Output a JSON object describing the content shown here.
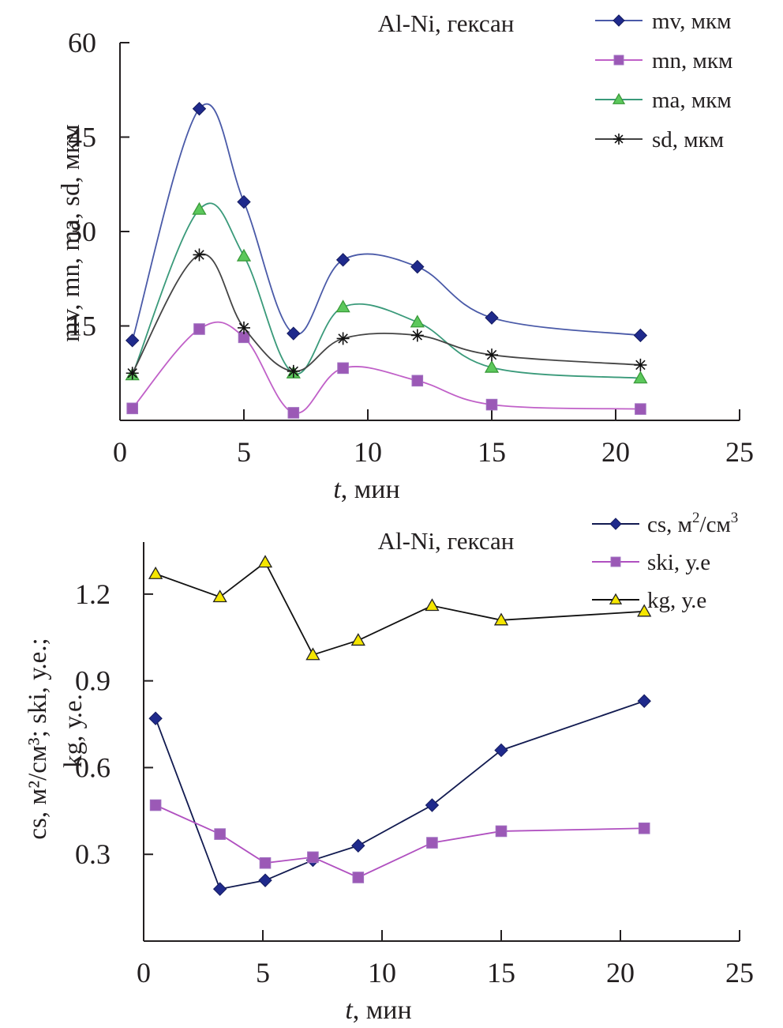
{
  "chart_data": [
    {
      "type": "line",
      "title": "Al-Ni, гексан",
      "xlabel_italic": "t",
      "xlabel_rest": ", мин",
      "ylabel": "mv, mn, ma, sd, мкм",
      "xlim": [
        0,
        25
      ],
      "ylim": [
        0,
        60
      ],
      "xticks": [
        0,
        5,
        10,
        15,
        20,
        25
      ],
      "yticks": [
        0,
        15,
        30,
        45,
        60
      ],
      "xtick_labels": [
        "0",
        "5",
        "10",
        "15",
        "20",
        "25"
      ],
      "ytick_labels": [
        "0",
        "15",
        "30",
        "45",
        "60"
      ],
      "grid": false,
      "smooth": true,
      "legend_position": "top-right",
      "x": [
        0.5,
        3.2,
        5.0,
        7.0,
        9.0,
        12.0,
        15.0,
        21.0
      ],
      "series": [
        {
          "name": "mv, мкм",
          "marker": "diamond",
          "color": "#1f2a8c",
          "line_color": "#4a5aa8",
          "values": [
            12.7,
            49.5,
            34.7,
            13.8,
            25.5,
            24.4,
            16.3,
            13.5
          ]
        },
        {
          "name": "mn, мкм",
          "marker": "square",
          "color": "#9b59b6",
          "line_color": "#c060c8",
          "values": [
            1.9,
            14.5,
            13.2,
            1.2,
            8.3,
            6.3,
            2.5,
            1.8
          ]
        },
        {
          "name": "ma, мкм",
          "marker": "triangle",
          "color": "#5cc85c",
          "line_color": "#3a9a7a",
          "values": [
            7.2,
            33.5,
            26.1,
            7.5,
            18.0,
            15.6,
            8.4,
            6.7
          ]
        },
        {
          "name": "sd, мкм",
          "marker": "asterisk",
          "color": "#111111",
          "line_color": "#444444",
          "values": [
            7.5,
            26.3,
            14.7,
            7.8,
            13.0,
            13.5,
            10.4,
            8.8
          ]
        }
      ]
    },
    {
      "type": "line",
      "title": "Al-Ni, гексан",
      "xlabel_italic": "t",
      "xlabel_rest": ", мин",
      "ylabel_line1": "cs, м²/см³; ski, у.е.;",
      "ylabel_line2": "kg, у.е.",
      "xlim": [
        0,
        25
      ],
      "ylim": [
        0,
        1.38
      ],
      "xticks": [
        0,
        5,
        10,
        15,
        20,
        25
      ],
      "yticks": [
        0.3,
        0.6,
        0.9,
        1.2
      ],
      "xtick_labels": [
        "0",
        "5",
        "10",
        "15",
        "20",
        "25"
      ],
      "ytick_labels": [
        "0.3",
        "0.6",
        "0.9",
        "1.2"
      ],
      "ytick_zero_label": "0",
      "grid": false,
      "smooth": false,
      "legend_position": "top-right",
      "x": [
        0.5,
        3.2,
        5.1,
        7.1,
        9.0,
        12.1,
        15.0,
        21.0
      ],
      "series": [
        {
          "name": "cs, м²/см³",
          "name_base": "cs, м",
          "name_sup1": "2",
          "name_mid": "/см",
          "name_sup2": "3",
          "marker": "diamond",
          "color": "#1f2a8c",
          "line_color": "#111a50",
          "values": [
            0.77,
            0.18,
            0.21,
            0.28,
            0.33,
            0.47,
            0.66,
            0.83
          ]
        },
        {
          "name": "ski, у.е",
          "marker": "square",
          "color": "#9b59b6",
          "line_color": "#b050c0",
          "values": [
            0.47,
            0.37,
            0.27,
            0.29,
            0.22,
            0.34,
            0.38,
            0.39
          ]
        },
        {
          "name": "kg, у.е",
          "marker": "triangle",
          "color": "#f5e600",
          "line_color": "#111111",
          "values": [
            1.27,
            1.19,
            1.31,
            0.99,
            1.04,
            1.16,
            1.11,
            1.14
          ]
        }
      ]
    }
  ]
}
